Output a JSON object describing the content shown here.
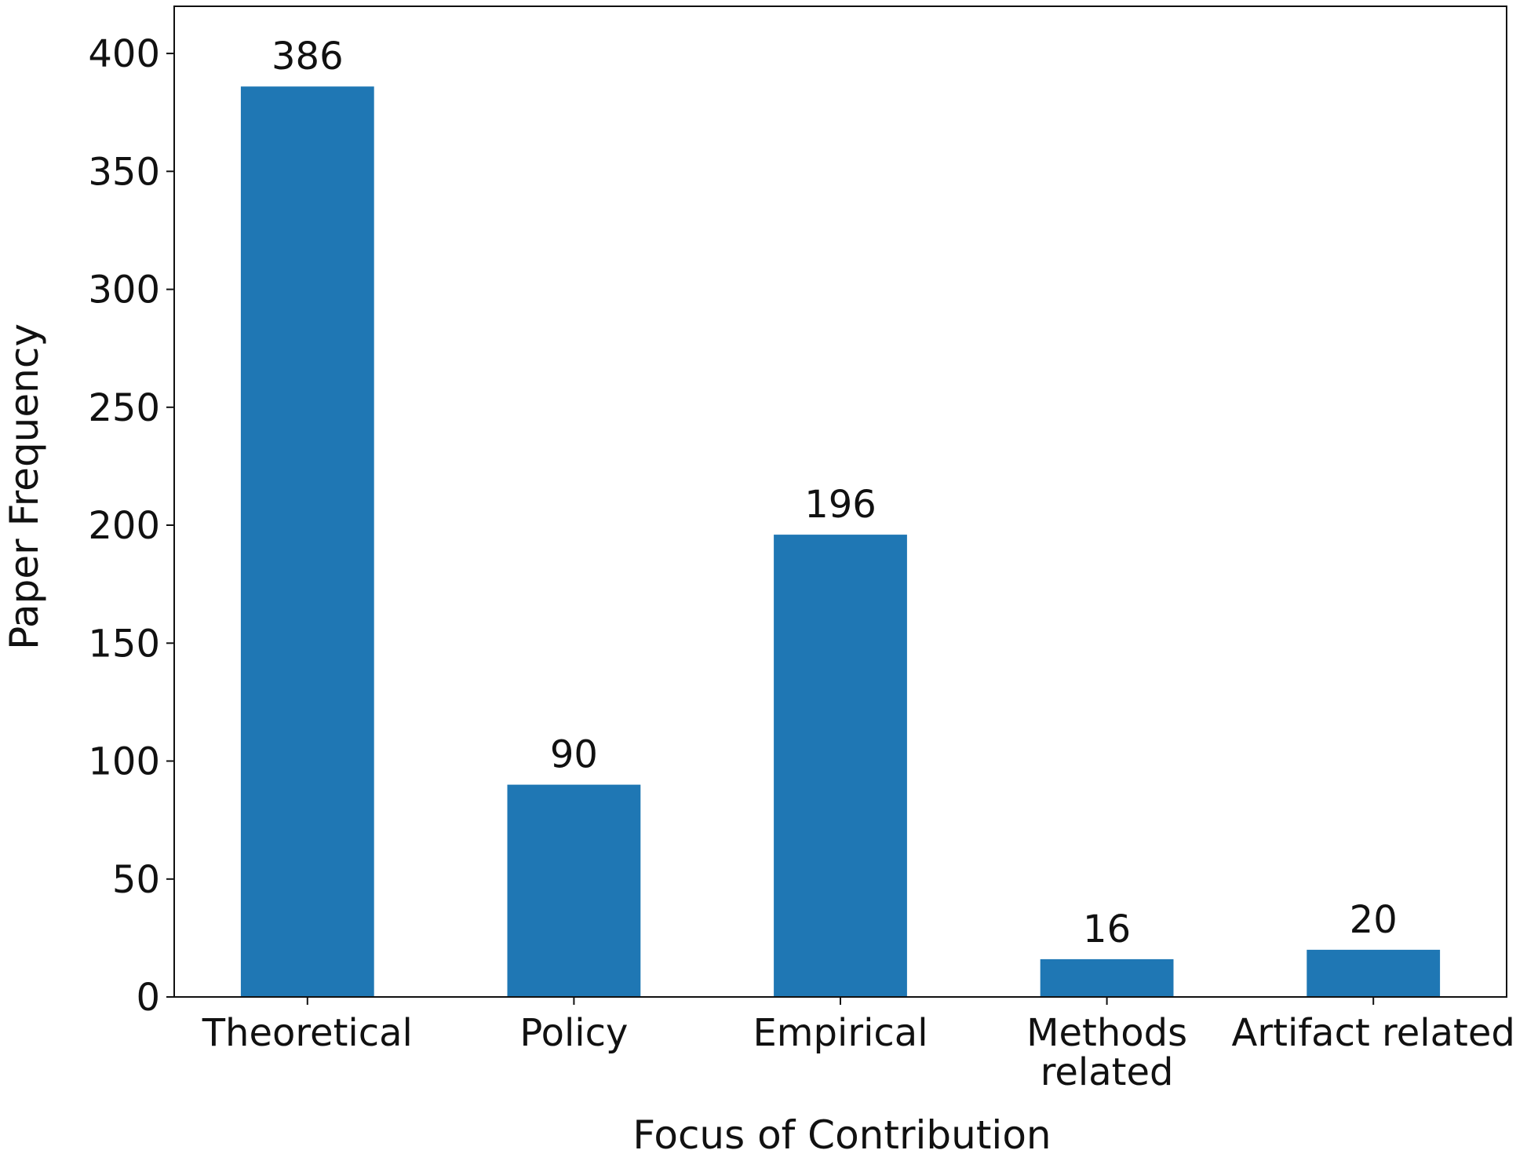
{
  "chart_data": {
    "type": "bar",
    "title": "",
    "xlabel": "Focus of Contribution",
    "ylabel": "Paper Frequency",
    "categories": [
      [
        "Theoretical"
      ],
      [
        "Policy"
      ],
      [
        "Empirical"
      ],
      [
        "Methods",
        "related"
      ],
      [
        "Artifact related"
      ]
    ],
    "values": [
      386,
      90,
      196,
      16,
      20
    ],
    "data_labels": [
      "386",
      "90",
      "196",
      "16",
      "20"
    ],
    "yticks": [
      0,
      50,
      100,
      150,
      200,
      250,
      300,
      350,
      400
    ],
    "ytick_labels": [
      "0",
      "50",
      "100",
      "150",
      "200",
      "250",
      "300",
      "350",
      "400"
    ],
    "ylim": [
      0,
      420
    ],
    "grid": false,
    "legend": "none",
    "bar_color": "#1f77b4",
    "axis_color": "#111111"
  }
}
